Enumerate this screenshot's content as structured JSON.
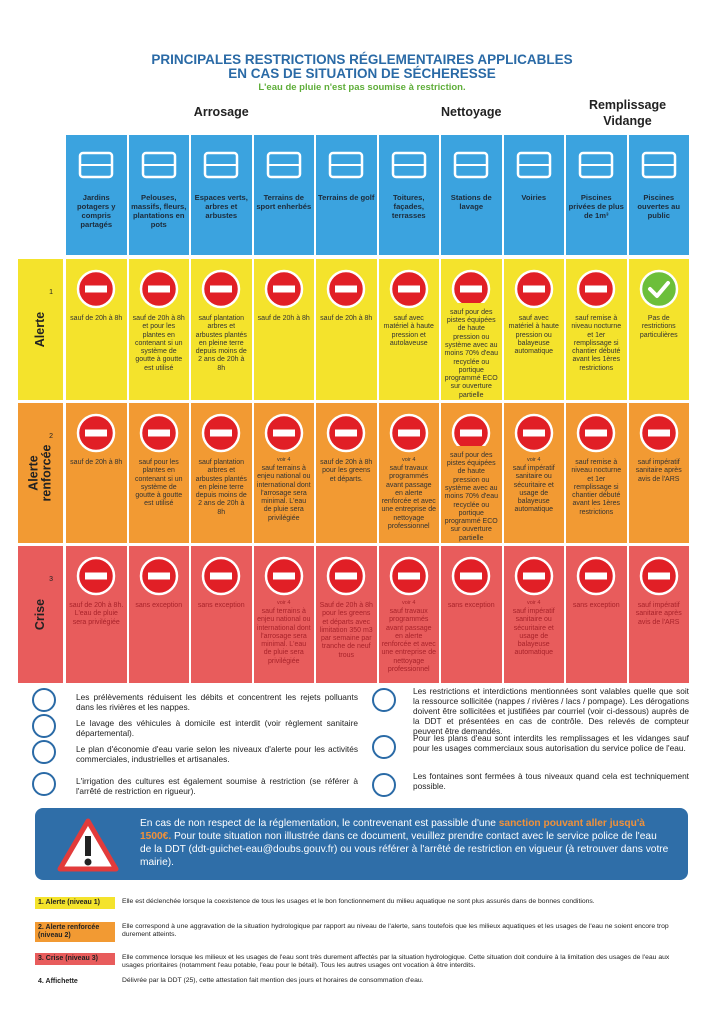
{
  "header": {
    "title_line1": "PRINCIPALES RESTRICTIONS RÉGLEMENTAIRES APPLICABLES",
    "title_line2": "EN CAS DE SITUATION DE SÉCHERESSE",
    "subtitle": "L'eau de pluie n'est pas soumise à restriction."
  },
  "groups": [
    "Arrosage",
    "Nettoyage",
    "Remplissage Vidange"
  ],
  "columns": [
    "Jardins potagers y compris partagés",
    "Pelouses, massifs, fleurs, plantations en pots",
    "Espaces verts, arbres et arbustes",
    "Terrains de sport enherbés",
    "Terrains de golf",
    "Toitures, façades, terrasses",
    "Stations de lavage",
    "Voiries",
    "Piscines privées de plus de 1m³",
    "Piscines ouvertes au public"
  ],
  "rows": [
    {
      "label": "Alerte",
      "sup": "1",
      "cells": [
        {
          "text": "sauf de 20h à 8h"
        },
        {
          "text": "sauf de 20h à 8h et pour les plantes en contenant si un système de goutte à goutte est utilisé"
        },
        {
          "text": "sauf plantation arbres et arbustes plantés en pleine terre depuis moins de 2 ans de 20h à 8h"
        },
        {
          "text": "sauf de 20h à 8h"
        },
        {
          "text": "sauf de 20h à 8h"
        },
        {
          "text": "sauf avec matériel à haute pression et autolaveuse"
        },
        {
          "text": "sauf pour des pistes équipées de haute pression ou système avec au moins 70% d'eau recyclée ou portique programmé ECO sur ouverture partielle"
        },
        {
          "text": "sauf avec matériel à haute pression ou balayeuse automatique"
        },
        {
          "text": "sauf remise à niveau nocturne et 1er remplissage si chantier débuté avant les 1ères restrictions"
        },
        {
          "text": "Pas de restrictions particulières"
        }
      ]
    },
    {
      "label": "Alerte renforcée",
      "sup": "2",
      "cells": [
        {
          "text": "sauf de 20h à 8h"
        },
        {
          "text": "sauf pour les plantes en contenant si un système de goutte à goutte est utilisé"
        },
        {
          "text": "sauf plantation arbres et arbustes plantés en pleine terre depuis moins de 2 ans de 20h à 8h"
        },
        {
          "note": "voir 4",
          "text": "sauf terrains à enjeu national ou international dont l'arrosage sera minimal. L'eau de pluie sera privilégiée"
        },
        {
          "text": "sauf de 20h à 8h pour les greens et départs."
        },
        {
          "note": "voir 4",
          "text": "sauf travaux programmés avant passage en alerte renforcée et avec une entreprise de nettoyage professionnel"
        },
        {
          "text": "sauf pour des pistes équipées de haute pression ou système avec au moins 70% d'eau recyclée ou portique programmé ECO sur ouverture partielle"
        },
        {
          "note": "voir 4",
          "text": "sauf impératif sanitaire ou sécuritaire et usage de balayeuse automatique"
        },
        {
          "text": "sauf remise à niveau nocturne et 1er remplissage si chantier débuté avant les 1ères restrictions"
        },
        {
          "text": "sauf impératif sanitaire après avis de l'ARS"
        }
      ]
    },
    {
      "label": "Crise",
      "sup": "3",
      "cells": [
        {
          "text": "sauf de 20h à 8h. L'eau de pluie sera privilégiée"
        },
        {
          "text": "sans exception"
        },
        {
          "text": "sans exception"
        },
        {
          "note": "voir 4",
          "text": "sauf terrains à enjeu national ou international dont l'arrosage sera minimal. L'eau de pluie sera privilégiée"
        },
        {
          "text": "Sauf de 20h à 8h pour les greens et départs avec limitation 350 m3 par semaine par tranche de neuf trous"
        },
        {
          "note": "voir 4",
          "text": "sauf travaux programmés avant passage en alerte renforcée et avec une entreprise de nettoyage professionnel"
        },
        {
          "text": "sans exception"
        },
        {
          "note": "voir 4",
          "text": "sauf impératif sanitaire ou sécuritaire et usage de balayeuse automatique"
        },
        {
          "text": "sans exception"
        },
        {
          "text": "sauf impératif sanitaire après avis de l'ARS"
        }
      ]
    }
  ],
  "notes_left": [
    "Les prélèvements réduisent les débits et concentrent les rejets polluants dans les rivières et les nappes.",
    "Le lavage des véhicules à domicile est interdit (voir règlement sanitaire départemental).",
    "Le plan d'économie d'eau varie selon les niveaux d'alerte pour les activités commerciales, industrielles et artisanales.",
    "L'irrigation des cultures est également soumise à restriction (se référer à l'arrêté de restriction en rigueur)."
  ],
  "notes_right": [
    "Les restrictions et interdictions mentionnées sont valables quelle que soit la ressource sollicitée (nappes / rivières / lacs / pompage). Les dérogations doivent être sollicitées et justifiées par courriel (voir ci-dessous) auprès de la DDT et présentées en cas de contrôle. Des relevés de compteur peuvent être demandés.",
    "Pour les plans d'eau sont interdits les remplissages et les vidanges sauf pour les usages commerciaux sous autorisation du service police de l'eau.",
    "Les fontaines sont fermées à tous niveaux quand cela est techniquement possible."
  ],
  "sanction": {
    "before": "En cas de non respect de la réglementation, le contrevenant est passible d'une ",
    "highlight": "sanction pouvant aller jusqu'à 1500€.",
    "after": " Pour toute situation non illustrée dans ce document, veuillez prendre contact avec le service police de l'eau de la DDT (ddt-guichet-eau@doubs.gouv.fr) ou vous référer à l'arrêté de restriction en vigueur (à retrouver dans votre mairie)."
  },
  "legend": [
    {
      "label": "1. Alerte (niveau 1)",
      "text": "Elle est déclenchée lorsque la coexistence de tous les usages et le bon fonctionnement du milieu aquatique ne sont plus assurés dans de bonnes conditions."
    },
    {
      "label": "2. Alerte renforcée (niveau 2)",
      "text": "Elle correspond à une aggravation de la situation hydrologique par rapport au niveau de l'alerte, sans toutefois que les milieux aquatiques et les usages de l'eau ne soient encore trop durement atteints."
    },
    {
      "label": "3. Crise (niveau 3)",
      "text": "Elle commence lorsque les milieux et les usages de l'eau sont très durement affectés par la situation hydrologique. Cette situation doit conduire à la limitation des usages de l'eau aux usages prioritaires (notamment l'eau potable, l'eau pour le bétail). Tous les autres usages ont vocation à être interdits."
    },
    {
      "label": "4. Affichette",
      "text": "Délivrée par la DDT (25), cette attestation fait mention des jours et horaires de consommation d'eau."
    }
  ]
}
